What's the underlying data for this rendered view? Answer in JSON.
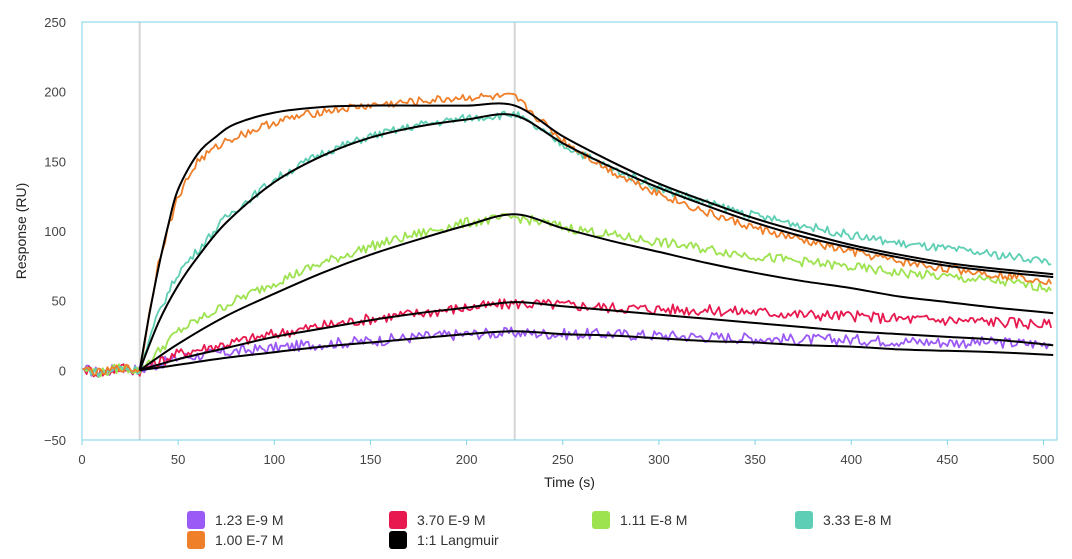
{
  "chart_data": {
    "type": "line",
    "xlabel": "Time (s)",
    "ylabel": "Response (RU)",
    "xlim": [
      0,
      507
    ],
    "ylim": [
      -50,
      250
    ],
    "xticks": [
      0,
      50,
      100,
      150,
      200,
      250,
      300,
      350,
      400,
      450,
      500
    ],
    "yticks": [
      -50,
      0,
      50,
      100,
      150,
      200,
      250
    ],
    "ytick_labels": [
      "−50",
      "0",
      "50",
      "100",
      "150",
      "200",
      "250"
    ],
    "vlines": [
      30,
      225
    ],
    "legend_position": "bottom",
    "series": [
      {
        "name": "1.23 E-9 M",
        "color": "#9b59f5",
        "x": [
          0,
          10,
          20,
          30,
          50,
          75,
          100,
          125,
          150,
          175,
          200,
          225,
          250,
          275,
          300,
          325,
          350,
          375,
          400,
          425,
          450,
          475,
          500,
          505
        ],
        "y": [
          1,
          -2,
          2,
          0,
          9,
          13,
          16,
          19,
          21,
          24,
          26,
          27,
          26,
          26,
          25,
          24,
          23,
          22,
          22,
          21,
          20,
          20,
          19,
          20
        ]
      },
      {
        "name": "3.70 E-9 M",
        "color": "#e8194f",
        "x": [
          0,
          10,
          20,
          30,
          50,
          75,
          100,
          125,
          150,
          175,
          200,
          225,
          250,
          275,
          300,
          325,
          350,
          375,
          400,
          425,
          450,
          475,
          500,
          505
        ],
        "y": [
          1,
          -2,
          2,
          0,
          12,
          19,
          26,
          32,
          37,
          41,
          45,
          48,
          47,
          45,
          44,
          43,
          42,
          40,
          39,
          37,
          36,
          35,
          33,
          32
        ]
      },
      {
        "name": "1.11 E-8 M",
        "color": "#9de24f",
        "x": [
          0,
          10,
          20,
          30,
          50,
          75,
          100,
          125,
          150,
          175,
          200,
          225,
          250,
          275,
          300,
          325,
          350,
          375,
          400,
          425,
          450,
          475,
          500,
          505
        ],
        "y": [
          1,
          -2,
          2,
          0,
          28,
          47,
          63,
          77,
          89,
          98,
          106,
          110,
          103,
          97,
          92,
          87,
          82,
          78,
          74,
          70,
          67,
          64,
          60,
          59
        ]
      },
      {
        "name": "3.33 E-8 M",
        "color": "#5ecfb4",
        "x": [
          0,
          10,
          20,
          30,
          40,
          50,
          75,
          100,
          125,
          150,
          175,
          200,
          225,
          250,
          275,
          300,
          325,
          350,
          375,
          400,
          425,
          450,
          475,
          500,
          505
        ],
        "y": [
          1,
          -2,
          2,
          0,
          42,
          70,
          110,
          137,
          156,
          168,
          176,
          181,
          184,
          162,
          145,
          131,
          120,
          111,
          104,
          97,
          91,
          87,
          83,
          79,
          78
        ]
      },
      {
        "name": "1.00 E-7 M",
        "color": "#f07f2a",
        "x": [
          0,
          10,
          20,
          30,
          40,
          50,
          60,
          75,
          100,
          125,
          150,
          175,
          200,
          225,
          250,
          275,
          300,
          325,
          350,
          375,
          400,
          425,
          450,
          475,
          500,
          505
        ],
        "y": [
          1,
          -2,
          2,
          0,
          80,
          125,
          150,
          165,
          178,
          186,
          190,
          193,
          196,
          196,
          165,
          143,
          127,
          113,
          102,
          93,
          85,
          78,
          73,
          69,
          65,
          64
        ]
      },
      {
        "name": "1:1 Langmuir",
        "color": "#000000",
        "is_fit": true,
        "curves": [
          {
            "x": [
              30,
              50,
              75,
              100,
              125,
              150,
              175,
              200,
              225,
              250,
              275,
              300,
              325,
              350,
              375,
              400,
              425,
              450,
              475,
              505
            ],
            "y": [
              0,
              4,
              9,
              13,
              17,
              20,
              23,
              26,
              28,
              26,
              25,
              23,
              21,
              20,
              18,
              17,
              15,
              14,
              13,
              11
            ]
          },
          {
            "x": [
              30,
              50,
              75,
              100,
              125,
              150,
              175,
              200,
              225,
              250,
              275,
              300,
              325,
              350,
              375,
              400,
              425,
              450,
              475,
              505
            ],
            "y": [
              0,
              8,
              16,
              24,
              30,
              36,
              41,
              45,
              49,
              46,
              43,
              40,
              37,
              34,
              31,
              28,
              26,
              24,
              22,
              18
            ]
          },
          {
            "x": [
              30,
              50,
              75,
              100,
              125,
              150,
              175,
              200,
              225,
              250,
              275,
              300,
              325,
              350,
              375,
              400,
              425,
              450,
              475,
              505
            ],
            "y": [
              0,
              19,
              39,
              55,
              70,
              83,
              94,
              104,
              112,
              102,
              93,
              85,
              77,
              70,
              64,
              59,
              53,
              49,
              45,
              41
            ]
          },
          {
            "x": [
              30,
              40,
              50,
              60,
              75,
              100,
              125,
              150,
              175,
              200,
              225,
              250,
              275,
              300,
              325,
              350,
              375,
              400,
              425,
              450,
              475,
              505
            ],
            "y": [
              0,
              35,
              61,
              81,
              106,
              135,
              154,
              167,
              175,
              180,
              183,
              163,
              146,
              131,
              118,
              106,
              96,
              88,
              81,
              75,
              71,
              67
            ]
          },
          {
            "x": [
              30,
              35,
              40,
              45,
              50,
              60,
              70,
              80,
              100,
              125,
              150,
              175,
              200,
              225,
              250,
              275,
              300,
              325,
              350,
              375,
              400,
              425,
              450,
              475,
              505
            ],
            "y": [
              0,
              40,
              75,
              105,
              130,
              155,
              168,
              177,
              185,
              189,
              190,
              190,
              190,
              190,
              168,
              150,
              134,
              121,
              109,
              99,
              90,
              83,
              77,
              73,
              69
            ]
          }
        ]
      }
    ]
  }
}
